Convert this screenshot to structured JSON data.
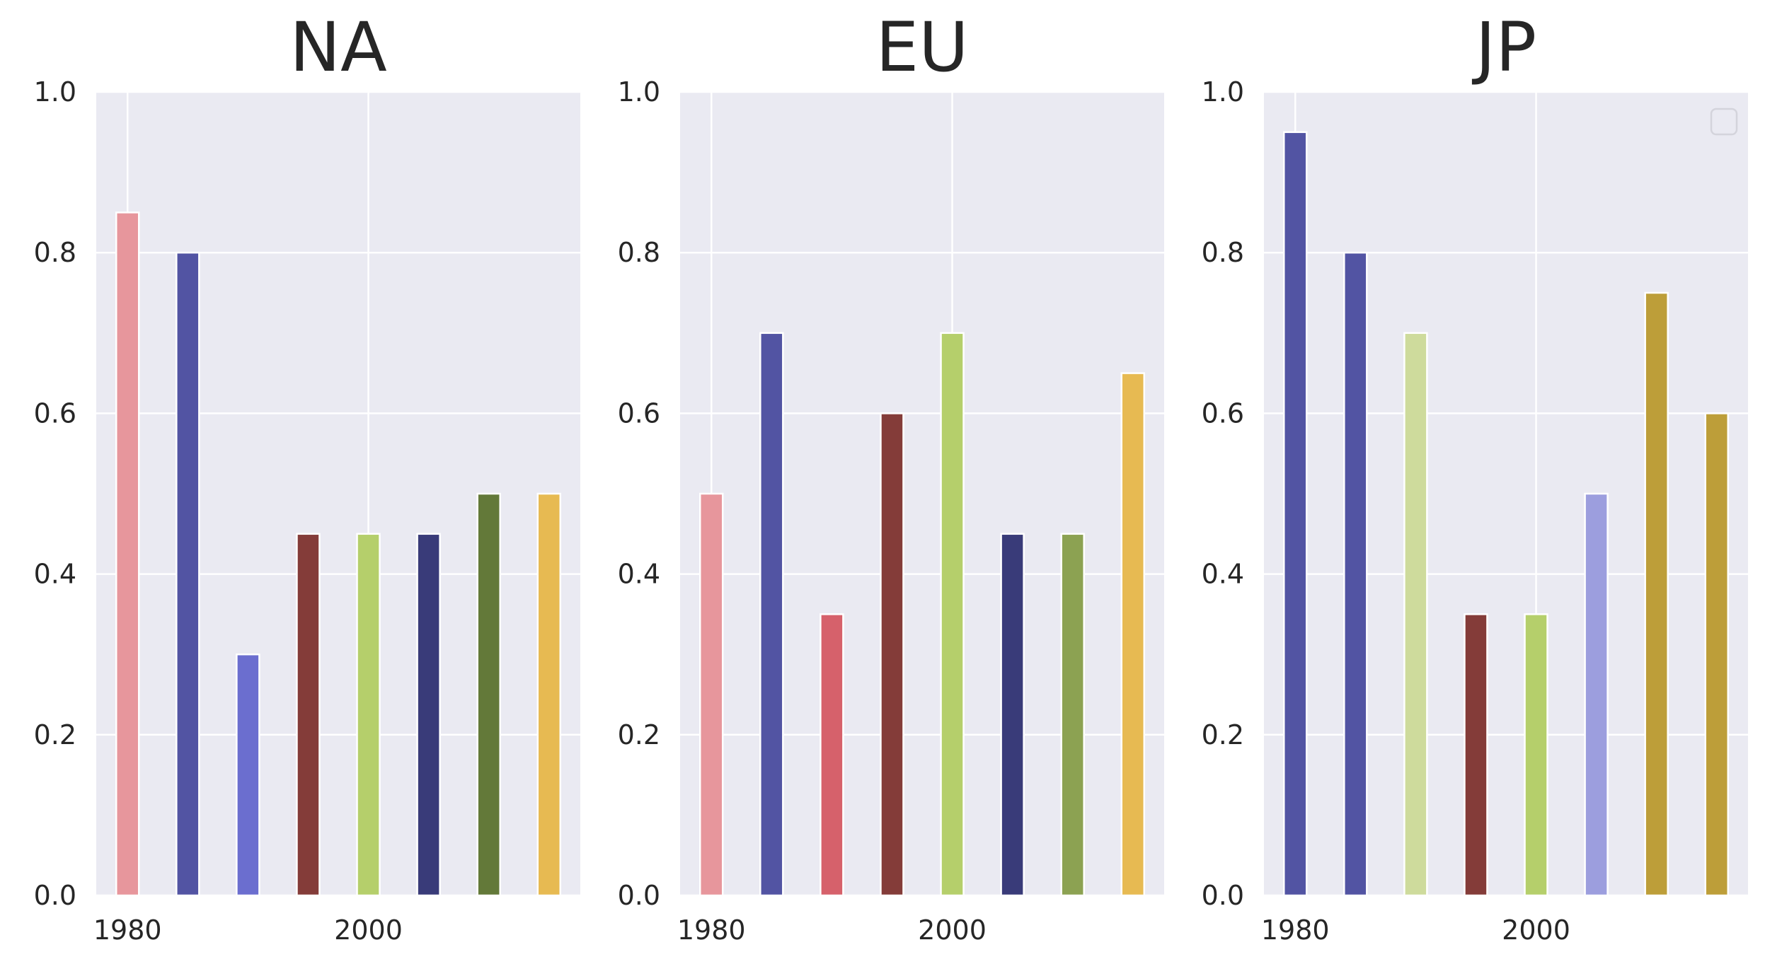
{
  "chart_data": [
    {
      "type": "bar",
      "title": "NA",
      "x": [
        1980,
        1985,
        1990,
        1995,
        2000,
        2005,
        2010,
        2015
      ],
      "values": [
        0.85,
        0.8,
        0.3,
        0.45,
        0.45,
        0.45,
        0.5,
        0.5
      ],
      "colors": [
        "#e7969c",
        "#5254a3",
        "#6b6ecf",
        "#843c39",
        "#b5cf6b",
        "#393b79",
        "#637939",
        "#e7ba52"
      ],
      "xticks": [
        "1980",
        "2000"
      ],
      "yticks": [
        "0.0",
        "0.2",
        "0.4",
        "0.6",
        "0.8",
        "1.0"
      ],
      "xlim": [
        1977.4,
        2017.6
      ],
      "ylim": [
        0,
        1.0
      ],
      "grid": true,
      "legend": false
    },
    {
      "type": "bar",
      "title": "EU",
      "x": [
        1980,
        1985,
        1990,
        1995,
        2000,
        2005,
        2010,
        2015
      ],
      "values": [
        0.5,
        0.7,
        0.35,
        0.6,
        0.7,
        0.45,
        0.45,
        0.65
      ],
      "colors": [
        "#e7969c",
        "#5254a3",
        "#d6616b",
        "#843c39",
        "#b5cf6b",
        "#393b79",
        "#8ca252",
        "#e7ba52"
      ],
      "xticks": [
        "1980",
        "2000"
      ],
      "yticks": [
        "0.0",
        "0.2",
        "0.4",
        "0.6",
        "0.8",
        "1.0"
      ],
      "xlim": [
        1977.4,
        2017.6
      ],
      "ylim": [
        0,
        1.0
      ],
      "grid": true,
      "legend": false
    },
    {
      "type": "bar",
      "title": "JP",
      "x": [
        1980,
        1985,
        1990,
        1995,
        2000,
        2005,
        2010,
        2015
      ],
      "values": [
        0.95,
        0.8,
        0.7,
        0.35,
        0.35,
        0.5,
        0.75,
        0.6
      ],
      "colors": [
        "#5254a3",
        "#5254a3",
        "#cedb9c",
        "#843c39",
        "#b5cf6b",
        "#9c9ede",
        "#bd9e39",
        "#bd9e39"
      ],
      "xticks": [
        "1980",
        "2000"
      ],
      "yticks": [
        "0.0",
        "0.2",
        "0.4",
        "0.6",
        "0.8",
        "1.0"
      ],
      "xlim": [
        1977.4,
        2017.6
      ],
      "ylim": [
        0,
        1.0
      ],
      "grid": true,
      "legend": "top-right"
    }
  ]
}
